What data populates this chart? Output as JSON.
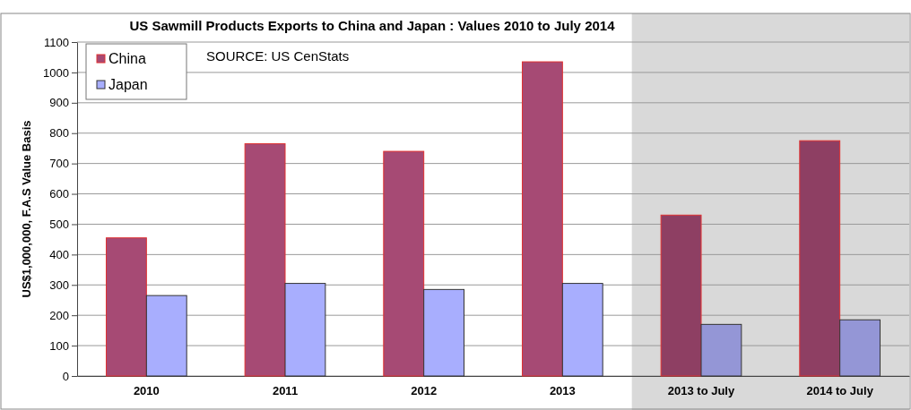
{
  "chart_data": {
    "type": "bar",
    "title": "US Sawmill Products Exports to China and Japan : Values 2010 to July 2014",
    "ylabel": "US$1,000,000, F.A.S Value Basis",
    "categories": [
      "2010",
      "2011",
      "2012",
      "2013",
      "2013 to July",
      "2014 to July"
    ],
    "series": [
      {
        "name": "China",
        "color": "#a64a74",
        "colors": [
          "#a64a74",
          "#a64a74",
          "#a64a74",
          "#a64a74",
          "#8e3f63",
          "#8e3f63"
        ],
        "values": [
          455,
          765,
          740,
          1035,
          530,
          775
        ]
      },
      {
        "name": "Japan",
        "color": "#a8aefe",
        "colors": [
          "#a8aefe",
          "#a8aefe",
          "#a8aefe",
          "#a8aefe",
          "#9496d6",
          "#9496d6"
        ],
        "values": [
          265,
          305,
          285,
          305,
          170,
          185
        ]
      }
    ],
    "ylim": [
      0,
      1100
    ],
    "yticks": [
      0,
      100,
      200,
      300,
      400,
      500,
      600,
      700,
      800,
      900,
      1000,
      1100
    ],
    "grid": "y",
    "legend": "top left",
    "bands": [
      {
        "axis": "x",
        "from": "2013 to July",
        "to": "2014 to July",
        "color": "#d9d9d9"
      }
    ],
    "annotations": [
      "SOURCE: US CenStats"
    ]
  }
}
